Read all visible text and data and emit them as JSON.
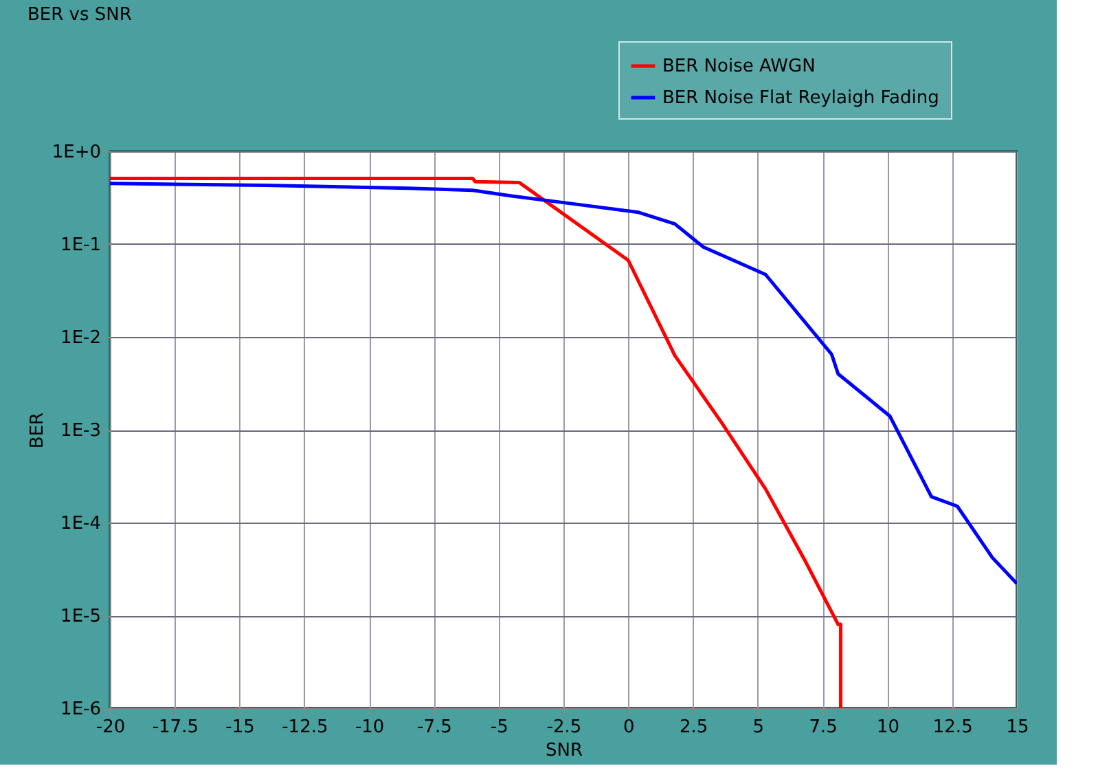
{
  "chart_data": {
    "type": "line",
    "title": "BER vs SNR",
    "xlabel": "SNR",
    "ylabel": "BER",
    "log": "y",
    "grid": true,
    "legend": "top right",
    "marker": "none",
    "line_style": "solid",
    "xlim": [
      -20,
      15
    ],
    "xticks": [
      -20,
      -17.5,
      -15,
      -12.5,
      -10,
      -7.5,
      -5,
      -2.5,
      0,
      2.5,
      5,
      7.5,
      10,
      12.5,
      15
    ],
    "ylim": [
      1e-06,
      1
    ],
    "yticks": [
      {
        "value": 1e-06,
        "label": "1E-6"
      },
      {
        "value": 1e-05,
        "label": "1E-5"
      },
      {
        "value": 0.0001,
        "label": "1E-4"
      },
      {
        "value": 0.001,
        "label": "1E-3"
      },
      {
        "value": 0.01,
        "label": "1E-2"
      },
      {
        "value": 0.1,
        "label": "1E-1"
      },
      {
        "value": 1,
        "label": "1E+0"
      }
    ],
    "series": [
      {
        "name": "BER Noise AWGN",
        "color": "#ff0000",
        "x": [
          -20,
          -6,
          -5.9,
          -4.2,
          0,
          1.8,
          3.6,
          5.3,
          6.8,
          8.1,
          8.2,
          8.2
        ],
        "values": [
          0.51,
          0.51,
          0.47,
          0.46,
          0.067,
          0.0063,
          0.0012,
          0.00023,
          4e-05,
          8e-06,
          8e-06,
          1e-06
        ]
      },
      {
        "name": "BER Noise Flat Reylaigh Fading",
        "color": "#0000ff",
        "x": [
          -20,
          -14,
          -8.5,
          -6,
          -4.5,
          -2.5,
          0.4,
          1.8,
          2.9,
          5.3,
          7.85,
          8.1,
          10.1,
          11.7,
          12.7,
          14.05,
          15
        ],
        "values": [
          0.45,
          0.43,
          0.4,
          0.38,
          0.33,
          0.28,
          0.22,
          0.165,
          0.093,
          0.047,
          0.0065,
          0.004,
          0.0014,
          0.00019,
          0.00015,
          4.2e-05,
          2.2e-05
        ]
      }
    ]
  }
}
